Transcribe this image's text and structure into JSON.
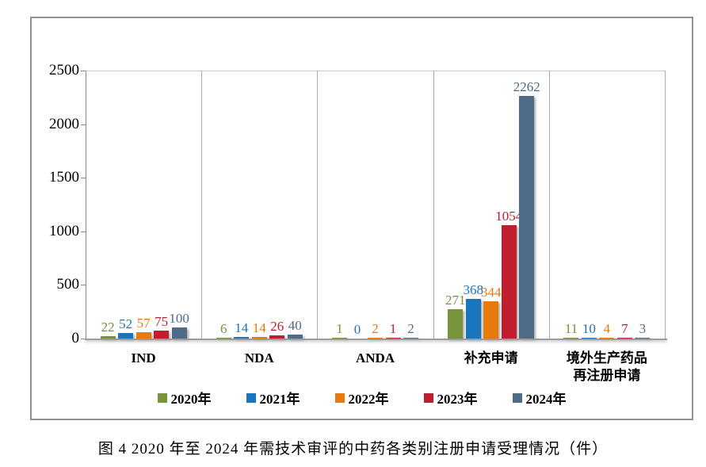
{
  "figure": {
    "caption": "图 4  2020 年至 2024 年需技术审评的中药各类别注册申请受理情况（件）"
  },
  "chart_data": {
    "type": "bar",
    "title": "",
    "categories": [
      "IND",
      "NDA",
      "ANDA",
      "补充申请",
      "境外生产药品\n再注册申请"
    ],
    "series": [
      {
        "name": "2020年",
        "color": "#77933C",
        "values": [
          22,
          6,
          1,
          271,
          11
        ]
      },
      {
        "name": "2021年",
        "color": "#1B75BC",
        "values": [
          52,
          14,
          0,
          368,
          10
        ]
      },
      {
        "name": "2022年",
        "color": "#E8790C",
        "values": [
          57,
          14,
          2,
          344,
          4
        ]
      },
      {
        "name": "2023年",
        "color": "#BE1E2D",
        "values": [
          75,
          26,
          1,
          1054,
          7
        ]
      },
      {
        "name": "2024年",
        "color": "#4E6B87",
        "values": [
          100,
          40,
          2,
          2262,
          3
        ]
      }
    ],
    "xlabel": "",
    "ylabel": "",
    "ylim": [
      0,
      2500
    ],
    "yticks": [
      0,
      500,
      1000,
      1500,
      2000,
      2500
    ],
    "grid": false,
    "legend_position": "bottom",
    "value_labels": true
  }
}
